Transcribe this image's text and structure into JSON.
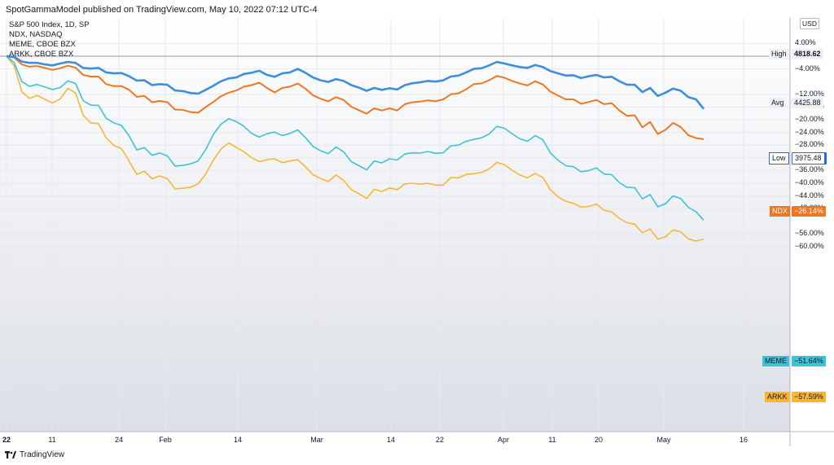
{
  "header": {
    "text": "SpotGammaModel published on TradingView.com, May 10, 2022 07:12 UTC-4"
  },
  "legend": [
    "S&P 500 Index, 1D, SP",
    "NDX, NASDAQ",
    "MEME, CBOE BZX",
    "ARKK, CBOE BZX"
  ],
  "currency": "USD",
  "footer": {
    "brand": "TradingView",
    "logo_icon": "tradingview-logo-icon"
  },
  "colors": {
    "spx": "#3d8fdc",
    "ndx": "#f07722",
    "meme": "#3cc3d6",
    "arkk": "#f7b733",
    "grid": "#e6e8ee"
  },
  "level_labels": [
    {
      "label": "High",
      "value": "4818.62"
    },
    {
      "label": "Avg",
      "value": "4425.88"
    },
    {
      "label": "Low",
      "value": "3975.48"
    }
  ],
  "series_tags": [
    {
      "label": "NDX",
      "value": "−26.14%",
      "color": "#f07722"
    },
    {
      "label": "MEME",
      "value": "−51.64%",
      "color": "#3cc3d6"
    },
    {
      "label": "ARKK",
      "value": "−57.59%",
      "color": "#f7b733"
    }
  ],
  "chart_data": {
    "type": "line",
    "y_axis_unit": "percent change",
    "y_ticks": [
      "4.00%",
      "−4.00%",
      "−12.00%",
      "−16.00%",
      "−20.00%",
      "−24.00%",
      "−28.00%",
      "−32.00%",
      "−36.00%",
      "−40.00%",
      "−44.00%",
      "−48.00%",
      "−56.00%",
      "−60.00%"
    ],
    "x_ticks": [
      "22",
      "11",
      "24",
      "Feb",
      "14",
      "Mar",
      "14",
      "22",
      "Apr",
      "11",
      "20",
      "May",
      "16"
    ],
    "ylim": [
      -63,
      7
    ],
    "x_count": 92,
    "grid": true,
    "reference_lines": [
      {
        "name": "High",
        "value": 0.0
      },
      {
        "name": "Avg",
        "value": -8.2
      },
      {
        "name": "Low",
        "value": -17.6
      }
    ],
    "series": [
      {
        "name": "S&P 500 Index",
        "color": "#3d8fdc",
        "values": [
          0.0,
          -0.2,
          -1.7,
          -2.1,
          -2.1,
          -2.6,
          -2.9,
          -2.3,
          -1.8,
          -2.1,
          -3.7,
          -3.9,
          -3.7,
          -5.1,
          -5.4,
          -5.3,
          -6.3,
          -7.7,
          -7.6,
          -9.1,
          -8.8,
          -9.0,
          -10.8,
          -11.0,
          -11.6,
          -11.8,
          -10.6,
          -9.3,
          -7.9,
          -7.0,
          -6.7,
          -5.6,
          -5.2,
          -4.6,
          -5.9,
          -6.5,
          -5.4,
          -5.1,
          -4.0,
          -5.2,
          -6.7,
          -7.6,
          -8.1,
          -7.2,
          -7.8,
          -9.1,
          -9.9,
          -10.9,
          -10.0,
          -10.6,
          -10.1,
          -10.5,
          -9.1,
          -8.5,
          -8.2,
          -7.8,
          -8.0,
          -7.6,
          -6.4,
          -6.1,
          -5.1,
          -4.0,
          -3.8,
          -2.9,
          -1.8,
          -2.3,
          -2.9,
          -3.4,
          -3.7,
          -2.8,
          -3.4,
          -4.7,
          -5.4,
          -6.1,
          -6.0,
          -6.9,
          -6.3,
          -5.9,
          -6.7,
          -6.5,
          -7.9,
          -9.0,
          -9.0,
          -11.3,
          -10.0,
          -12.5,
          -11.5,
          -10.2,
          -10.9,
          -12.9,
          -13.6,
          -16.6
        ]
      },
      {
        "name": "NDX",
        "color": "#f07722",
        "values": [
          0.0,
          -0.4,
          -2.6,
          -3.3,
          -3.1,
          -3.7,
          -4.3,
          -3.8,
          -3.0,
          -3.6,
          -5.9,
          -6.4,
          -6.4,
          -8.8,
          -9.4,
          -9.4,
          -10.6,
          -12.8,
          -12.5,
          -14.5,
          -14.1,
          -14.5,
          -16.8,
          -16.9,
          -17.6,
          -17.8,
          -16.0,
          -14.4,
          -12.6,
          -11.5,
          -10.8,
          -9.6,
          -9.1,
          -8.3,
          -10.0,
          -11.4,
          -10.0,
          -9.6,
          -8.6,
          -10.2,
          -12.3,
          -13.4,
          -14.2,
          -12.9,
          -13.8,
          -15.9,
          -17.0,
          -18.1,
          -16.4,
          -17.1,
          -16.4,
          -17.1,
          -15.1,
          -14.5,
          -14.3,
          -13.9,
          -14.2,
          -13.6,
          -12.0,
          -11.7,
          -10.4,
          -8.8,
          -8.6,
          -7.6,
          -6.2,
          -6.8,
          -7.8,
          -8.6,
          -9.2,
          -7.9,
          -8.9,
          -11.2,
          -12.4,
          -13.6,
          -13.6,
          -15.0,
          -14.4,
          -13.8,
          -15.1,
          -14.8,
          -17.1,
          -18.8,
          -18.6,
          -22.4,
          -20.7,
          -24.5,
          -23.2,
          -21.0,
          -22.3,
          -24.9,
          -25.8,
          -26.14
        ]
      },
      {
        "name": "MEME",
        "color": "#3cc3d6",
        "values": [
          0.0,
          -2.0,
          -8.0,
          -9.5,
          -8.9,
          -9.7,
          -10.5,
          -9.9,
          -7.8,
          -8.6,
          -14.0,
          -15.4,
          -15.5,
          -19.5,
          -21.0,
          -21.8,
          -25.1,
          -29.5,
          -28.8,
          -31.2,
          -30.5,
          -31.4,
          -34.6,
          -34.4,
          -33.9,
          -33.0,
          -29.4,
          -24.6,
          -21.4,
          -19.7,
          -20.6,
          -22.1,
          -24.3,
          -25.5,
          -24.4,
          -23.9,
          -25.0,
          -24.3,
          -23.2,
          -25.6,
          -28.4,
          -29.8,
          -30.7,
          -28.6,
          -30.1,
          -33.2,
          -34.5,
          -35.8,
          -33.0,
          -33.6,
          -32.3,
          -32.7,
          -30.8,
          -30.4,
          -30.5,
          -30.0,
          -30.6,
          -30.4,
          -28.2,
          -28.0,
          -26.8,
          -26.2,
          -25.7,
          -24.5,
          -22.1,
          -22.7,
          -24.4,
          -26.0,
          -26.8,
          -25.0,
          -26.3,
          -30.5,
          -32.8,
          -34.5,
          -34.8,
          -36.4,
          -36.0,
          -35.2,
          -37.1,
          -37.3,
          -39.8,
          -41.3,
          -41.4,
          -44.9,
          -43.6,
          -47.4,
          -46.5,
          -44.0,
          -44.8,
          -47.6,
          -49.0,
          -51.64
        ]
      },
      {
        "name": "ARKK",
        "color": "#f7b733",
        "values": [
          0.0,
          -3.0,
          -11.2,
          -13.3,
          -12.3,
          -13.6,
          -14.7,
          -13.5,
          -10.1,
          -11.6,
          -18.6,
          -21.0,
          -21.2,
          -25.7,
          -28.1,
          -29.1,
          -33.0,
          -37.2,
          -36.2,
          -38.6,
          -37.7,
          -38.6,
          -41.8,
          -41.6,
          -41.3,
          -40.2,
          -37.1,
          -32.7,
          -29.2,
          -27.3,
          -28.7,
          -30.1,
          -32.0,
          -33.2,
          -32.6,
          -32.3,
          -33.5,
          -33.0,
          -32.6,
          -34.8,
          -37.3,
          -38.5,
          -39.5,
          -37.4,
          -39.1,
          -42.0,
          -43.3,
          -44.8,
          -41.9,
          -42.6,
          -41.5,
          -42.0,
          -40.2,
          -40.0,
          -40.3,
          -40.0,
          -40.6,
          -40.6,
          -38.2,
          -38.3,
          -37.2,
          -37.0,
          -36.6,
          -35.5,
          -33.4,
          -34.2,
          -35.9,
          -37.4,
          -38.3,
          -36.9,
          -38.2,
          -42.1,
          -44.3,
          -45.7,
          -46.3,
          -47.5,
          -47.3,
          -46.6,
          -48.5,
          -49.0,
          -51.1,
          -52.4,
          -52.9,
          -55.6,
          -54.4,
          -57.6,
          -56.9,
          -54.7,
          -55.3,
          -57.5,
          -58.2,
          -57.59
        ]
      }
    ]
  }
}
